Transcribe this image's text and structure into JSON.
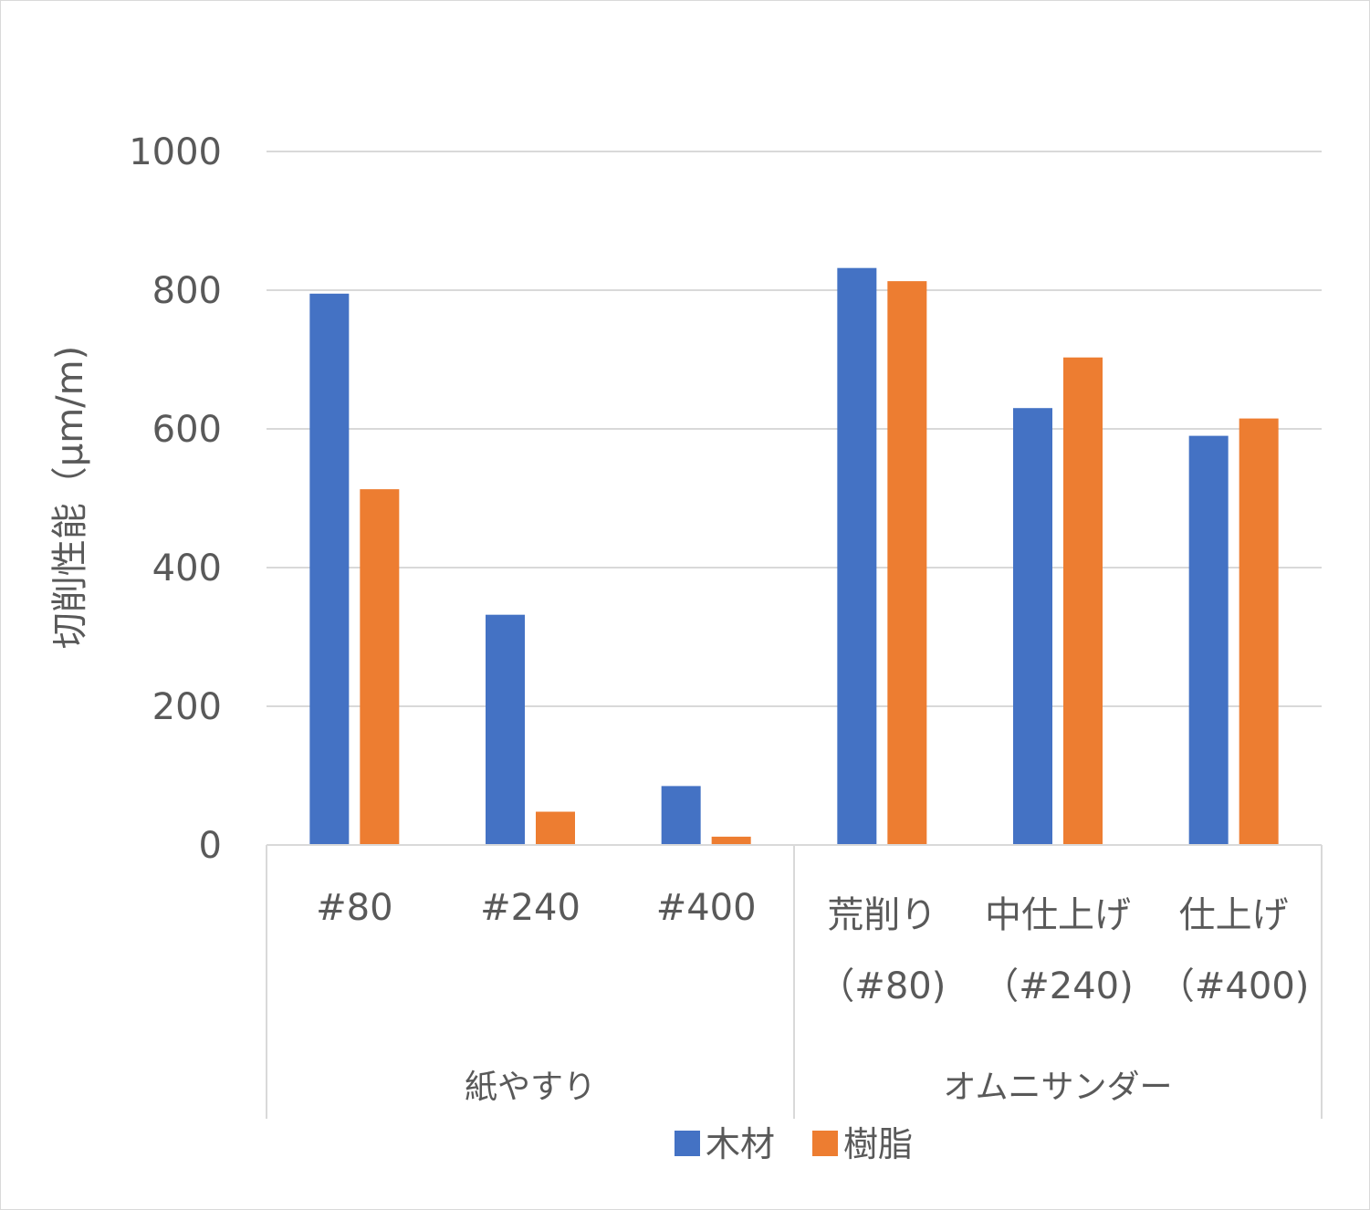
{
  "chart_data": {
    "type": "bar",
    "ylabel": "切削性能（μm/m)",
    "ylim": [
      0,
      1000
    ],
    "yticks": [
      0,
      200,
      400,
      600,
      800,
      1000
    ],
    "grid": true,
    "legend_position": "bottom",
    "categories": [
      {
        "line1": "#80",
        "line2": ""
      },
      {
        "line1": "#240",
        "line2": ""
      },
      {
        "line1": "#400",
        "line2": ""
      },
      {
        "line1": "荒削り",
        "line2": "（#80)"
      },
      {
        "line1": "中仕上げ",
        "line2": "（#240)"
      },
      {
        "line1": "仕上げ",
        "line2": "（#400)"
      }
    ],
    "groups": [
      {
        "label": "紙やすり",
        "count": 3
      },
      {
        "label": "オムニサンダー",
        "count": 3
      }
    ],
    "series": [
      {
        "name": "木材",
        "color": "#4472C4",
        "values": [
          795,
          332,
          85,
          832,
          630,
          590
        ]
      },
      {
        "name": "樹脂",
        "color": "#ED7D31",
        "values": [
          513,
          48,
          12,
          813,
          703,
          615
        ]
      }
    ]
  }
}
